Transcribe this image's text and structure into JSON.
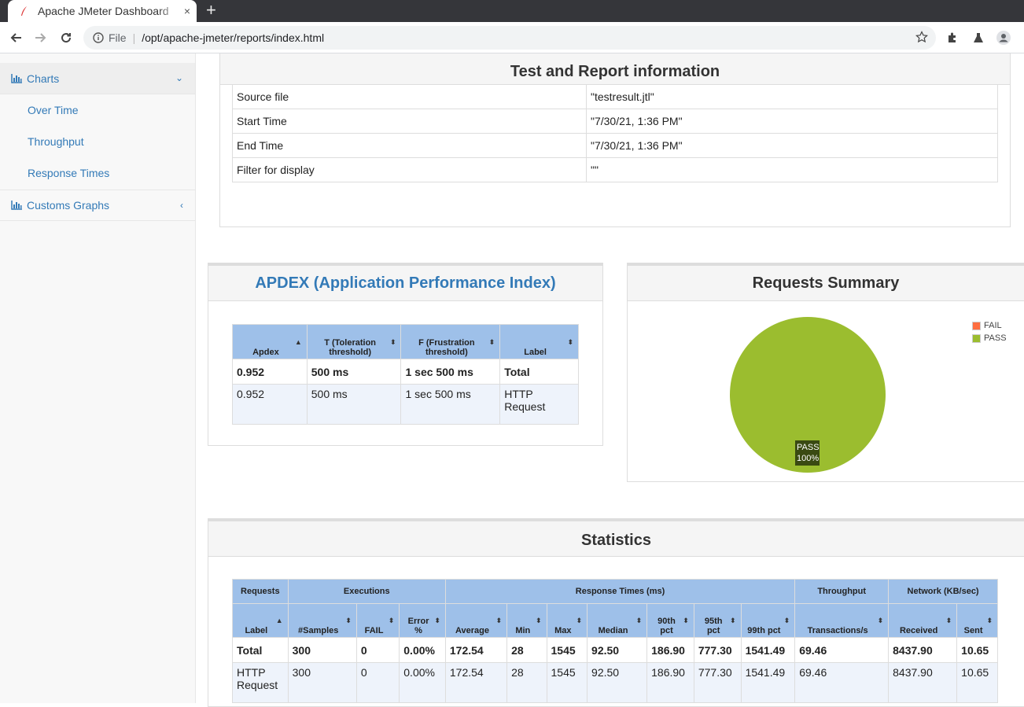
{
  "browser": {
    "tab_title": "Apache JMeter Dashboard",
    "tab_close": "×",
    "new_tab": "+",
    "scheme": "File",
    "url": "/opt/apache-jmeter/reports/index.html"
  },
  "sidebar": {
    "charts_label": "Charts",
    "sub_items": [
      "Over Time",
      "Throughput",
      "Response Times"
    ],
    "customs_label": "Customs Graphs"
  },
  "test_info": {
    "title": "Test and Report information",
    "rows": [
      {
        "key": "Source file",
        "value": "\"testresult.jtl\""
      },
      {
        "key": "Start Time",
        "value": "\"7/30/21, 1:36 PM\""
      },
      {
        "key": "End Time",
        "value": "\"7/30/21, 1:36 PM\""
      },
      {
        "key": "Filter for display",
        "value": "\"\""
      }
    ]
  },
  "apdex": {
    "title": "APDEX (Application Performance Index)",
    "headers": [
      "Apdex",
      "T (Toleration threshold)",
      "F (Frustration threshold)",
      "Label"
    ],
    "total": [
      "0.952",
      "500 ms",
      "1 sec 500 ms",
      "Total"
    ],
    "rows": [
      [
        "0.952",
        "500 ms",
        "1 sec 500 ms",
        "HTTP Request"
      ]
    ]
  },
  "requests_summary": {
    "title": "Requests Summary",
    "legend": [
      {
        "label": "FAIL",
        "color": "#ff6e40"
      },
      {
        "label": "PASS",
        "color": "#9bbd2f"
      }
    ],
    "pie_label": "PASS",
    "pie_pct": "100%"
  },
  "chart_data": {
    "type": "pie",
    "categories": [
      "FAIL",
      "PASS"
    ],
    "values": [
      0,
      100
    ],
    "title": "Requests Summary",
    "legend": "top-right"
  },
  "statistics": {
    "title": "Statistics",
    "groups": [
      "Requests",
      "Executions",
      "Response Times (ms)",
      "Throughput",
      "Network (KB/sec)"
    ],
    "columns": [
      "Label",
      "#Samples",
      "FAIL",
      "Error %",
      "Average",
      "Min",
      "Max",
      "Median",
      "90th pct",
      "95th pct",
      "99th pct",
      "Transactions/s",
      "Received",
      "Sent"
    ],
    "total": [
      "Total",
      "300",
      "0",
      "0.00%",
      "172.54",
      "28",
      "1545",
      "92.50",
      "186.90",
      "777.30",
      "1541.49",
      "69.46",
      "8437.90",
      "10.65"
    ],
    "rows": [
      [
        "HTTP Request",
        "300",
        "0",
        "0.00%",
        "172.54",
        "28",
        "1545",
        "92.50",
        "186.90",
        "777.30",
        "1541.49",
        "69.46",
        "8437.90",
        "10.65"
      ]
    ]
  }
}
